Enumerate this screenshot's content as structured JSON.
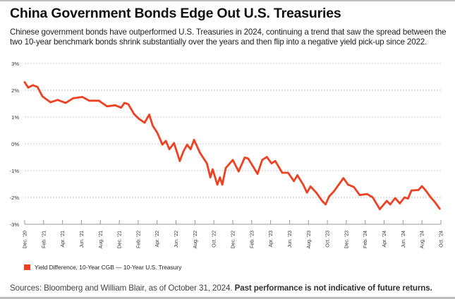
{
  "header": {
    "title": "China Government Bonds Edge Out U.S. Treasuries",
    "subtitle": "Chinese government bonds have outperformed U.S. Treasuries in 2024, continuing a trend that saw the spread between the two 10-year benchmark bonds shrink substantially over the years and then flip into a negative yield pick-up since 2022."
  },
  "footer": {
    "sources": "Sources: Bloomberg and William Blair, as of October 31, 2024.",
    "disclaimer": "Past performance is not indicative of future returns."
  },
  "chart_data": {
    "type": "line",
    "title": "",
    "xlabel": "",
    "ylabel": "",
    "ylim": [
      -3,
      3
    ],
    "xlim": [
      "2020-12-01",
      "2024-10-31"
    ],
    "y_ticks": [
      3,
      2,
      1,
      0,
      -1,
      -2,
      -3
    ],
    "y_tick_labels": [
      "3%",
      "2%",
      "1%",
      "0%",
      "-1%",
      "-2%",
      "-3%"
    ],
    "x_tick_labels": [
      "Dec. '20",
      "Feb. '21",
      "Apr. '21",
      "Jun. '21",
      "Aug. '21",
      "Dec. '21",
      "Feb. '22",
      "Apr. '22",
      "Jun. '22",
      "Aug. '22",
      "Oct. '22",
      "Dec. '22",
      "Feb. '23",
      "Apr. '23",
      "Jun. '23",
      "Aug. '23",
      "Oct. '23",
      "Dec. '23",
      "Feb. '24",
      "Apr. '24",
      "Jun. '24",
      "Aug. '24",
      "Oct. '24"
    ],
    "grid": "horizontal dotted",
    "legend_position": "bottom-left",
    "color": "#ee4123",
    "series": [
      {
        "name": "Yield Difference, 10-Year CGB — 10-Year U.S. Treasury",
        "x": [
          "2020-12-01",
          "2020-12-13",
          "2020-12-29",
          "2021-01-14",
          "2021-01-31",
          "2021-02-28",
          "2021-03-24",
          "2021-04-21",
          "2021-05-16",
          "2021-06-17",
          "2021-07-11",
          "2021-08-13",
          "2021-09-10",
          "2021-10-08",
          "2021-10-28",
          "2021-11-09",
          "2021-11-22",
          "2021-12-12",
          "2021-12-28",
          "2022-01-17",
          "2022-02-02",
          "2022-02-14",
          "2022-03-02",
          "2022-03-19",
          "2022-03-31",
          "2022-04-12",
          "2022-04-28",
          "2022-05-18",
          "2022-05-30",
          "2022-06-12",
          "2022-06-24",
          "2022-07-06",
          "2022-07-26",
          "2022-08-19",
          "2022-08-31",
          "2022-09-08",
          "2022-09-24",
          "2022-10-03",
          "2022-10-11",
          "2022-10-23",
          "2022-11-16",
          "2022-12-06",
          "2022-12-27",
          "2023-01-08",
          "2023-02-09",
          "2023-02-25",
          "2023-03-13",
          "2023-03-29",
          "2023-04-11",
          "2023-05-05",
          "2023-05-25",
          "2023-06-14",
          "2023-06-26",
          "2023-07-16",
          "2023-07-29",
          "2023-08-10",
          "2023-08-30",
          "2023-09-19",
          "2023-10-01",
          "2023-10-13",
          "2023-10-29",
          "2023-11-15",
          "2023-12-01",
          "2023-12-17",
          "2024-01-06",
          "2024-01-26",
          "2024-02-20",
          "2024-03-11",
          "2024-04-04",
          "2024-04-28",
          "2024-05-10",
          "2024-05-27",
          "2024-06-12",
          "2024-06-28",
          "2024-07-10",
          "2024-07-22",
          "2024-08-15",
          "2024-08-27",
          "2024-09-09",
          "2024-09-25",
          "2024-10-11",
          "2024-10-27"
        ],
        "values": [
          2.3,
          2.1,
          2.19,
          2.12,
          1.77,
          1.55,
          1.64,
          1.53,
          1.7,
          1.75,
          1.61,
          1.61,
          1.4,
          1.44,
          1.35,
          1.53,
          1.48,
          1.11,
          0.94,
          0.79,
          1.09,
          0.68,
          0.41,
          -0.03,
          0.11,
          -0.2,
          0.03,
          -0.64,
          -0.29,
          -0.03,
          -0.2,
          0.15,
          -0.33,
          -0.73,
          -1.25,
          -0.95,
          -1.52,
          -1.25,
          -1.52,
          -0.9,
          -0.6,
          -1.03,
          -0.51,
          -0.55,
          -1.12,
          -0.6,
          -0.49,
          -0.73,
          -0.64,
          -1.08,
          -1.08,
          -1.39,
          -1.17,
          -1.52,
          -1.82,
          -1.59,
          -1.82,
          -2.13,
          -2.26,
          -1.96,
          -1.78,
          -1.52,
          -1.28,
          -1.52,
          -1.61,
          -1.91,
          -1.87,
          -2.0,
          -2.44,
          -2.13,
          -2.26,
          -2.02,
          -2.22,
          -2.0,
          -2.04,
          -1.74,
          -1.72,
          -1.58,
          -1.74,
          -1.98,
          -2.18,
          -2.42
        ]
      }
    ]
  }
}
